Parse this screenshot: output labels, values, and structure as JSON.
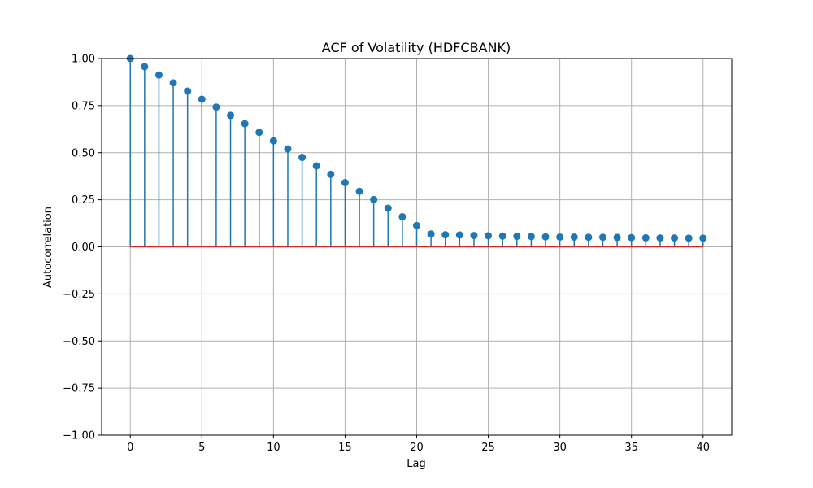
{
  "chart_data": {
    "type": "stem",
    "title": "ACF of Volatility (HDFCBANK)",
    "xlabel": "Lag",
    "ylabel": "Autocorrelation",
    "xlim": [
      -2,
      42
    ],
    "ylim": [
      -1.0,
      1.0
    ],
    "xticks": [
      0,
      5,
      10,
      15,
      20,
      25,
      30,
      35,
      40
    ],
    "xtick_labels": [
      "0",
      "5",
      "10",
      "15",
      "20",
      "25",
      "30",
      "35",
      "40"
    ],
    "yticks": [
      -1.0,
      -0.75,
      -0.5,
      -0.25,
      0.0,
      0.25,
      0.5,
      0.75,
      1.0
    ],
    "ytick_labels": [
      "−1.00",
      "−0.75",
      "−0.50",
      "−0.25",
      "0.00",
      "0.25",
      "0.50",
      "0.75",
      "1.00"
    ],
    "grid": true,
    "colors": {
      "stem": "#1f77b4",
      "baseline": "#d62728",
      "grid": "#b0b0b0"
    },
    "baseline": 0,
    "lags": [
      0,
      1,
      2,
      3,
      4,
      5,
      6,
      7,
      8,
      9,
      10,
      11,
      12,
      13,
      14,
      15,
      16,
      17,
      18,
      19,
      20,
      21,
      22,
      23,
      24,
      25,
      26,
      27,
      28,
      29,
      30,
      31,
      32,
      33,
      34,
      35,
      36,
      37,
      38,
      39,
      40
    ],
    "values": [
      1.0,
      0.957,
      0.913,
      0.871,
      0.827,
      0.784,
      0.742,
      0.698,
      0.654,
      0.608,
      0.563,
      0.52,
      0.475,
      0.43,
      0.385,
      0.341,
      0.295,
      0.251,
      0.205,
      0.16,
      0.113,
      0.068,
      0.064,
      0.063,
      0.06,
      0.059,
      0.057,
      0.056,
      0.055,
      0.053,
      0.052,
      0.052,
      0.051,
      0.051,
      0.05,
      0.049,
      0.048,
      0.047,
      0.047,
      0.046,
      0.046
    ]
  }
}
